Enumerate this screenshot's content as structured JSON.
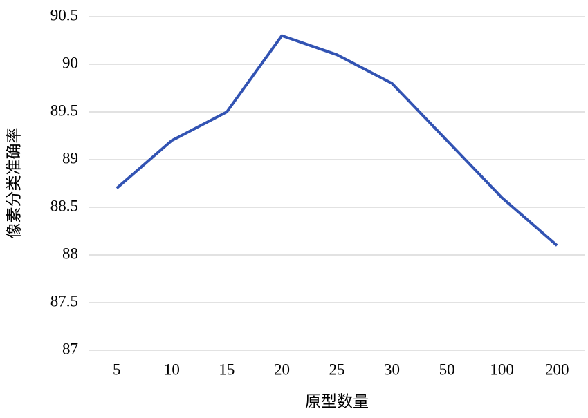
{
  "chart_data": {
    "type": "line",
    "x_label": "原型数量",
    "y_label": "像素分类准确率",
    "categories": [
      "5",
      "10",
      "15",
      "20",
      "25",
      "30",
      "50",
      "100",
      "200"
    ],
    "series": [
      {
        "name": "像素分类准确率",
        "color": "#3253b3",
        "values": [
          88.7,
          89.2,
          89.5,
          90.3,
          90.1,
          89.8,
          89.2,
          88.6,
          88.1
        ]
      }
    ],
    "ylim": [
      87,
      90.5
    ],
    "yticks": [
      87,
      87.5,
      88,
      88.5,
      89,
      89.5,
      90,
      90.5
    ],
    "grid": true
  }
}
